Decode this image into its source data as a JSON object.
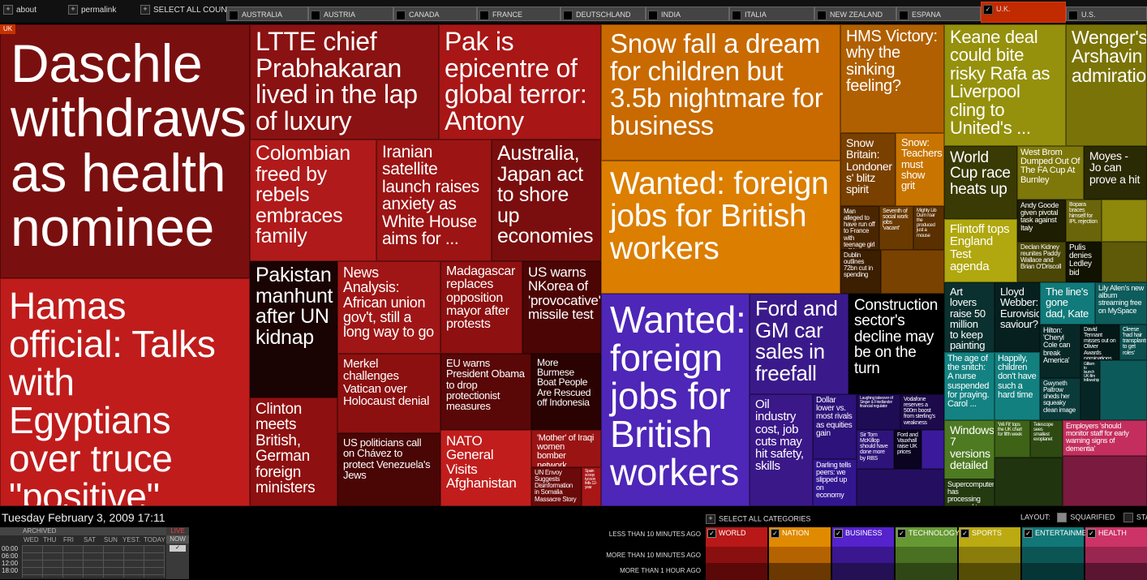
{
  "top": {
    "about": "about",
    "permalink": "permalink",
    "select_all_countries": "SELECT ALL COUNTRIES",
    "countries": [
      "AUSTRALIA",
      "AUSTRIA",
      "CANADA",
      "FRANCE",
      "DEUTSCHLAND",
      "INDIA",
      "ITALIA",
      "NEW ZEALAND",
      "ESPANA",
      "U.K.",
      "U.S."
    ],
    "active_country": "U.K."
  },
  "uk_tag": "UK",
  "stories": {
    "world": [
      "Daschle withdraws as health nominee",
      "Hamas official: Talks with Egyptians over truce \"positive\"",
      "LTTE chief Prabhakaran lived in the lap of luxury",
      "Pak is epicentre of global terror: Antony",
      "Colombian freed by rebels embraces family",
      "Iranian satellite launch raises anxiety as White House aims for ...",
      "Australia, Japan act to shore up economies",
      "Pakistan manhunt after UN kidnap",
      "News Analysis: African union gov't, still a long way to go",
      "Madagascar replaces opposition mayor after protests",
      "US warns NKorea of 'provocative' missile test",
      "Clinton meets British, German foreign ministers",
      "Merkel challenges Vatican over Holocaust denial",
      "EU warns President Obama to drop protectionist measures",
      "More Burmese Boat People Are Rescued off Indonesia",
      "US politicians call on Chávez to protect Venezuela's Jews",
      "NATO General Visits Afghanistan",
      "'Mother' of Iraqi women bomber network arrested",
      "UN Envoy Suggests Disinformation in Somalia Massacre Story",
      "Spain scoop tycoon fells 12-year"
    ],
    "nation": [
      "Snow fall a dream for children but 3.5b nightmare for business",
      "Wanted: foreign jobs for British workers",
      "HMS Victory: why the sinking feeling?",
      "Snow Britain: Londoner s' blitz spirit",
      "Snow: Teachers must show grit",
      "Man alleged to have run off to France with teenage girl will be ...",
      "Seventh of social work jobs 'vacant'",
      "Mighty Lib Dum roar the produced just a mouse",
      "Dublin outlines 72bn cut in spending"
    ],
    "business": [
      "Wanted: foreign jobs for British workers",
      "Ford and GM car sales in freefall",
      "Construction sector's decline may be on the turn",
      "Oil industry cost, job cuts may hit safety, skills",
      "Dollar lower vs. most rivals as equities gain",
      "Darling tells peers: we slipped up on economy",
      "Vodafone reserves a 500m boost from sterling's weakness",
      "Sir Tom McKillop should have done more by RBS",
      "Ford and Vauxhall raise UK prices",
      "Laughing takeover of Singer & Friedlander financial regulator"
    ],
    "technology": [
      "Windows 7 versions detailed",
      "Supercomputer has processing power of two million laptops",
      "'Wii Fit' tops the UK chart for fifth week",
      "Telescope sees smallest exoplanet"
    ],
    "sports": [
      "Keane deal could bite risky Rafa as Liverpool cling to United's ...",
      "Wenger's Arshavin admiration",
      "World Cup race heats up",
      "West Brom Dumped Out Of The FA Cup At Burnley",
      "Moyes - Jo can prove a hit",
      "Flintoff tops England Test agenda",
      "Andy Goode given pivotal task against Italy",
      "Bopara braces himself for IPL rejection",
      "Declan Kidney reunites Paddy Wallace and Brian O'Driscoll",
      "Pulis denies Ledley bid"
    ],
    "entertainment": [
      "Art lovers raise 50 million to keep painting on display",
      "Lloyd Webber: Eurovision saviour?",
      "The line's gone dad, Kate",
      "Lily Allen's new album streaming free on MySpace",
      "The age of the snitch: A nurse suspended for praying. Carol ...",
      "Happily, children don't have such a hard time",
      "Hilton: 'Cheryl Cole can break America'",
      "David Tennant misses out on Olivier Awards nominations",
      "Cleese 'had hair transplants to get roles'",
      "Gwyneth Paltrow sheds her squeaky clean image",
      "Gilliam to launch UK film fellowship"
    ],
    "health": [
      "Employers 'should monitor staff for early warning signs of dementia'"
    ]
  },
  "bottom": {
    "datetime": "Tuesday February 3, 2009 17:11",
    "archived": "ARCHIVED",
    "days": [
      "WED",
      "THU",
      "FRI",
      "SAT",
      "SUN",
      "YEST.",
      "TODAY"
    ],
    "hours": [
      "00:00",
      "06:00",
      "12:00",
      "18:00"
    ],
    "live": "LIVE",
    "now": "NOW",
    "select_all_categories": "SELECT ALL CATEGORIES",
    "layout_label": "LAYOUT:",
    "layout_options": [
      "SQUARIFIED",
      "STANDARD"
    ],
    "rows": [
      "LESS THAN 10 MINUTES AGO",
      "MORE THAN 10 MINUTES AGO",
      "MORE THAN 1 HOUR AGO"
    ],
    "categories": [
      "WORLD",
      "NATION",
      "BUSINESS",
      "TECHNOLOGY",
      "SPORTS",
      "ENTERTAINMENT",
      "HEALTH"
    ]
  },
  "colors": {
    "world": [
      "#b81818",
      "#8a0f0f",
      "#5a0808"
    ],
    "nation": [
      "#e08a00",
      "#b56200",
      "#6a3800"
    ],
    "business": [
      "#5522cc",
      "#3a168f",
      "#241055"
    ],
    "technology": [
      "#669933",
      "#4a7022",
      "#2f4715"
    ],
    "sports": [
      "#bbaa11",
      "#8a7d0c",
      "#554c06"
    ],
    "entertainment": [
      "#117777",
      "#0c5555",
      "#063535"
    ],
    "health": [
      "#cc3366",
      "#992650",
      "#5c1530"
    ]
  }
}
